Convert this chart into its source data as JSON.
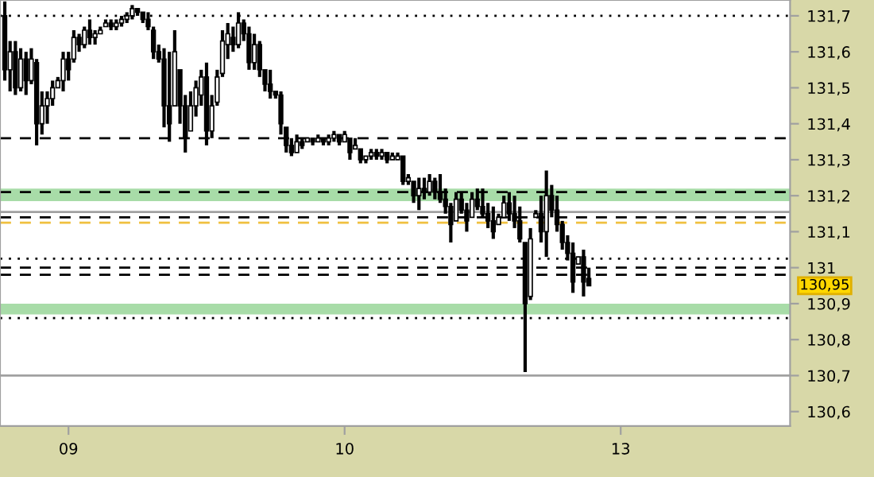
{
  "chart_data": {
    "type": "candlestick",
    "categories": [
      null,
      null,
      null,
      null,
      null,
      null,
      null,
      null,
      null,
      null,
      null,
      null,
      "09",
      null,
      null,
      null,
      null,
      null,
      null,
      null,
      null,
      null,
      null,
      null,
      null,
      null,
      null,
      null,
      null,
      null,
      null,
      null,
      null,
      null,
      null,
      null,
      null,
      null,
      null,
      null,
      null,
      null,
      null,
      null,
      null,
      null,
      null,
      null,
      null,
      null,
      null,
      null,
      null,
      null,
      null,
      null,
      null,
      null,
      null,
      null,
      null,
      null,
      null,
      null,
      "10",
      null,
      null,
      null,
      null,
      null,
      null,
      null,
      null,
      null,
      null,
      null,
      null,
      null,
      null,
      null,
      null,
      null,
      null,
      null,
      null,
      null,
      null,
      null,
      null,
      null,
      null,
      null,
      null,
      null,
      null,
      null,
      null,
      null,
      null,
      null,
      null,
      null,
      null,
      null,
      null,
      null,
      null,
      null,
      null,
      null,
      null,
      null,
      null,
      null,
      null,
      null,
      "13",
      null,
      null,
      null,
      null,
      null,
      null,
      null,
      null,
      null,
      null,
      null,
      null,
      null,
      null,
      null,
      null,
      null,
      null,
      null,
      null,
      null,
      null,
      null,
      null,
      null,
      null,
      null,
      null,
      null,
      null,
      null
    ],
    "ohlc": [
      [
        131.7,
        131.74,
        131.52,
        131.55
      ],
      [
        131.55,
        131.63,
        131.49,
        131.6
      ],
      [
        131.6,
        131.63,
        131.48,
        131.5
      ],
      [
        131.5,
        131.61,
        131.49,
        131.58
      ],
      [
        131.58,
        131.6,
        131.48,
        131.52
      ],
      [
        131.52,
        131.61,
        131.51,
        131.58
      ],
      [
        131.57,
        131.58,
        131.34,
        131.4
      ],
      [
        131.4,
        131.49,
        131.37,
        131.45
      ],
      [
        131.45,
        131.49,
        131.4,
        131.47
      ],
      [
        131.47,
        131.52,
        131.45,
        131.5
      ],
      [
        131.5,
        131.53,
        131.5,
        131.52
      ],
      [
        131.52,
        131.6,
        131.49,
        131.58
      ],
      [
        131.58,
        131.6,
        131.52,
        131.55
      ],
      [
        131.58,
        131.66,
        131.57,
        131.64
      ],
      [
        131.64,
        131.65,
        131.6,
        131.62
      ],
      [
        131.62,
        131.67,
        131.61,
        131.66
      ],
      [
        131.66,
        131.69,
        131.62,
        131.64
      ],
      [
        131.64,
        131.66,
        131.62,
        131.65
      ],
      [
        131.65,
        131.67,
        131.65,
        131.66
      ],
      [
        131.67,
        131.69,
        131.67,
        131.68
      ],
      [
        131.68,
        131.69,
        131.66,
        131.67
      ],
      [
        131.67,
        131.69,
        131.66,
        131.68
      ],
      [
        131.68,
        131.7,
        131.67,
        131.69
      ],
      [
        131.69,
        131.71,
        131.68,
        131.7
      ],
      [
        131.7,
        131.73,
        131.69,
        131.72
      ],
      [
        131.72,
        131.72,
        131.7,
        131.71
      ],
      [
        131.71,
        131.71,
        131.68,
        131.69
      ],
      [
        131.69,
        131.71,
        131.66,
        131.67
      ],
      [
        131.66,
        131.67,
        131.58,
        131.6
      ],
      [
        131.6,
        131.62,
        131.57,
        131.58
      ],
      [
        131.58,
        131.61,
        131.39,
        131.45
      ],
      [
        131.45,
        131.6,
        131.35,
        131.4
      ],
      [
        131.45,
        131.66,
        131.45,
        131.6
      ],
      [
        131.55,
        131.55,
        131.4,
        131.45
      ],
      [
        131.45,
        131.48,
        131.32,
        131.36
      ],
      [
        131.38,
        131.49,
        131.38,
        131.45
      ],
      [
        131.45,
        131.52,
        131.42,
        131.5
      ],
      [
        131.48,
        131.55,
        131.45,
        131.53
      ],
      [
        131.53,
        131.57,
        131.34,
        131.38
      ],
      [
        131.38,
        131.48,
        131.36,
        131.45
      ],
      [
        131.46,
        131.55,
        131.45,
        131.53
      ],
      [
        131.54,
        131.66,
        131.53,
        131.63
      ],
      [
        131.62,
        131.68,
        131.58,
        131.65
      ],
      [
        131.64,
        131.67,
        131.6,
        131.62
      ],
      [
        131.62,
        131.71,
        131.61,
        131.68
      ],
      [
        131.68,
        131.69,
        131.63,
        131.65
      ],
      [
        131.65,
        131.67,
        131.55,
        131.57
      ],
      [
        131.57,
        131.65,
        131.55,
        131.62
      ],
      [
        131.62,
        131.63,
        131.53,
        131.55
      ],
      [
        131.55,
        131.55,
        131.49,
        131.51
      ],
      [
        131.51,
        131.55,
        131.47,
        131.49
      ],
      [
        131.49,
        131.49,
        131.47,
        131.48
      ],
      [
        131.48,
        131.49,
        131.37,
        131.4
      ],
      [
        131.39,
        131.39,
        131.32,
        131.34
      ],
      [
        131.34,
        131.36,
        131.31,
        131.32
      ],
      [
        131.32,
        131.37,
        131.32,
        131.35
      ],
      [
        131.35,
        131.36,
        131.33,
        131.34
      ],
      [
        131.35,
        131.36,
        131.35,
        131.36
      ],
      [
        131.36,
        131.36,
        131.34,
        131.35
      ],
      [
        131.35,
        131.37,
        131.35,
        131.36
      ],
      [
        131.36,
        131.36,
        131.34,
        131.35
      ],
      [
        131.35,
        131.37,
        131.34,
        131.36
      ],
      [
        131.36,
        131.38,
        131.35,
        131.37
      ],
      [
        131.37,
        131.37,
        131.34,
        131.35
      ],
      [
        131.35,
        131.38,
        131.35,
        131.37
      ],
      [
        131.36,
        131.36,
        131.3,
        131.32
      ],
      [
        131.33,
        131.36,
        131.33,
        131.34
      ],
      [
        131.33,
        131.33,
        131.29,
        131.3
      ],
      [
        131.3,
        131.31,
        131.29,
        131.31
      ],
      [
        131.31,
        131.33,
        131.3,
        131.32
      ],
      [
        131.32,
        131.33,
        131.3,
        131.31
      ],
      [
        131.31,
        131.33,
        131.3,
        131.32
      ],
      [
        131.32,
        131.32,
        131.29,
        131.3
      ],
      [
        131.3,
        131.32,
        131.3,
        131.31
      ],
      [
        131.3,
        131.32,
        131.3,
        131.31
      ],
      [
        131.31,
        131.31,
        131.23,
        131.24
      ],
      [
        131.24,
        131.26,
        131.23,
        131.25
      ],
      [
        131.24,
        131.24,
        131.18,
        131.2
      ],
      [
        131.2,
        131.25,
        131.16,
        131.22
      ],
      [
        131.22,
        131.25,
        131.19,
        131.21
      ],
      [
        131.21,
        131.26,
        131.2,
        131.24
      ],
      [
        131.24,
        131.25,
        131.19,
        131.21
      ],
      [
        131.21,
        131.26,
        131.18,
        131.19
      ],
      [
        131.19,
        131.22,
        131.15,
        131.17
      ],
      [
        131.17,
        131.18,
        131.07,
        131.12
      ],
      [
        131.13,
        131.21,
        131.13,
        131.19
      ],
      [
        131.19,
        131.21,
        131.15,
        131.16
      ],
      [
        131.16,
        131.18,
        131.1,
        131.13
      ],
      [
        131.14,
        131.21,
        131.14,
        131.19
      ],
      [
        131.19,
        131.22,
        131.16,
        131.17
      ],
      [
        131.17,
        131.22,
        131.14,
        131.15
      ],
      [
        131.15,
        131.18,
        131.11,
        131.13
      ],
      [
        131.13,
        131.17,
        131.08,
        131.1
      ],
      [
        131.12,
        131.15,
        131.12,
        131.14
      ],
      [
        131.14,
        131.2,
        131.14,
        131.18
      ],
      [
        131.18,
        131.21,
        131.13,
        131.15
      ],
      [
        131.15,
        131.2,
        131.11,
        131.13
      ],
      [
        131.13,
        131.17,
        131.07,
        131.08
      ],
      [
        131.07,
        131.07,
        130.71,
        130.9
      ],
      [
        130.92,
        131.11,
        130.91,
        131.08
      ],
      [
        131.14,
        131.16,
        131.14,
        131.15
      ],
      [
        131.15,
        131.2,
        131.07,
        131.1
      ],
      [
        131.1,
        131.27,
        131.03,
        131.2
      ],
      [
        131.2,
        131.23,
        131.14,
        131.16
      ],
      [
        131.16,
        131.2,
        131.1,
        131.12
      ],
      [
        131.12,
        131.13,
        131.05,
        131.07
      ],
      [
        131.07,
        131.09,
        131.02,
        131.04
      ],
      [
        131.04,
        131.07,
        130.93,
        130.96
      ],
      [
        131.01,
        131.03,
        131.01,
        131.03
      ],
      [
        131.03,
        131.05,
        130.92,
        130.96
      ],
      [
        130.97,
        131.0,
        130.95,
        130.95
      ],
      null,
      null,
      null,
      null,
      null,
      null,
      null,
      null,
      null,
      null,
      null,
      null,
      null,
      null,
      null,
      null,
      null,
      null,
      null,
      null,
      null,
      null,
      null,
      null,
      null,
      null,
      null,
      null,
      null,
      null,
      null,
      null,
      null,
      null,
      null,
      null,
      null
    ],
    "color": "#000000",
    "ylim": [
      130.56,
      131.744
    ],
    "yticks": [
      {
        "value": 130.6,
        "label": "130,6"
      },
      {
        "value": 130.7,
        "label": "130,7"
      },
      {
        "value": 130.8,
        "label": "130,8"
      },
      {
        "value": 130.9,
        "label": "130,9"
      },
      {
        "value": 131,
        "label": "131"
      },
      {
        "value": 131.1,
        "label": "131,1"
      },
      {
        "value": 131.2,
        "label": "131,2"
      },
      {
        "value": 131.3,
        "label": "131,3"
      },
      {
        "value": 131.4,
        "label": "131,4"
      },
      {
        "value": 131.5,
        "label": "131,5"
      },
      {
        "value": 131.6,
        "label": "131,6"
      },
      {
        "value": 131.7,
        "label": "131,7"
      }
    ],
    "grid": false,
    "ref_lines": [
      {
        "axis": "y",
        "value": 131.7,
        "color": "#000000",
        "line_style": "dotted"
      },
      {
        "axis": "y",
        "value": 131.36,
        "color": "#000000",
        "line_style": "dashed"
      },
      {
        "axis": "y",
        "value": 131.21,
        "color": "#000000",
        "line_style": "dashed"
      },
      {
        "axis": "y",
        "value": 131.155,
        "color": "#a0a0a0",
        "line_style": "solid"
      },
      {
        "axis": "y",
        "value": 131.14,
        "color": "#000000",
        "line_style": "dashed"
      },
      {
        "axis": "y",
        "value": 131.125,
        "color": "#f0c040",
        "line_style": "dashed"
      },
      {
        "axis": "y",
        "value": 131.025,
        "color": "#000000",
        "line_style": "dotted"
      },
      {
        "axis": "y",
        "value": 131.0,
        "color": "#000000",
        "line_style": "dashed"
      },
      {
        "axis": "y",
        "value": 130.98,
        "color": "#000000",
        "line_style": "dashed"
      },
      {
        "axis": "y",
        "value": 130.86,
        "color": "#000000",
        "line_style": "dotted"
      },
      {
        "axis": "y",
        "value": 130.7,
        "color": "#a0a0a0",
        "line_style": "solid"
      }
    ],
    "bands": [
      {
        "axis": "y",
        "from": 131.185,
        "to": 131.22,
        "color": "#a8dca8"
      },
      {
        "axis": "y",
        "from": 130.87,
        "to": 130.9,
        "color": "#a8dca8"
      }
    ],
    "annotations": [
      "130,95"
    ]
  }
}
